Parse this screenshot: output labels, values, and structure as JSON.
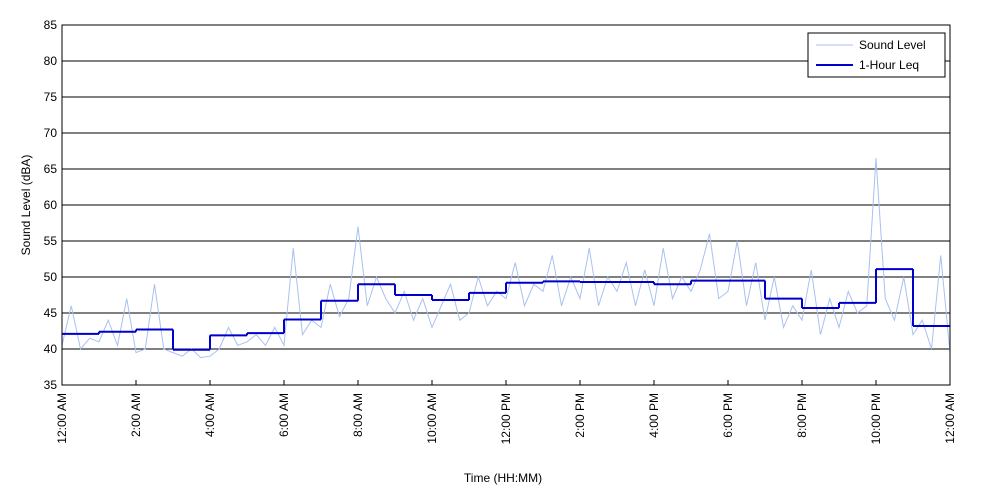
{
  "chart_data": {
    "type": "line",
    "xlabel": "Time (HH:MM)",
    "ylabel": "Sound Level (dBA)",
    "xlim": [
      0,
      24
    ],
    "ylim": [
      35,
      85
    ],
    "yticks": [
      35,
      40,
      45,
      50,
      55,
      60,
      65,
      70,
      75,
      80,
      85
    ],
    "xticks": [
      {
        "value": 0,
        "label": "12:00 AM"
      },
      {
        "value": 2,
        "label": "2:00 AM"
      },
      {
        "value": 4,
        "label": "4:00 AM"
      },
      {
        "value": 6,
        "label": "6:00 AM"
      },
      {
        "value": 8,
        "label": "8:00 AM"
      },
      {
        "value": 10,
        "label": "10:00 AM"
      },
      {
        "value": 12,
        "label": "12:00 PM"
      },
      {
        "value": 14,
        "label": "2:00 PM"
      },
      {
        "value": 16,
        "label": "4:00 PM"
      },
      {
        "value": 18,
        "label": "6:00 PM"
      },
      {
        "value": 20,
        "label": "8:00 PM"
      },
      {
        "value": 22,
        "label": "10:00 PM"
      },
      {
        "value": 24,
        "label": "12:00 AM"
      }
    ],
    "grid": true,
    "legend": "upper right",
    "series": [
      {
        "name": "Sound Level",
        "color": "#a9c1f0",
        "step": false,
        "x": [
          0,
          0.25,
          0.5,
          0.75,
          1,
          1.25,
          1.5,
          1.75,
          2,
          2.25,
          2.5,
          2.75,
          3,
          3.25,
          3.5,
          3.75,
          4,
          4.25,
          4.5,
          4.75,
          5,
          5.25,
          5.5,
          5.75,
          6,
          6.25,
          6.5,
          6.75,
          7,
          7.25,
          7.5,
          7.75,
          8,
          8.25,
          8.5,
          8.75,
          9,
          9.25,
          9.5,
          9.75,
          10,
          10.25,
          10.5,
          10.75,
          11,
          11.25,
          11.5,
          11.75,
          12,
          12.25,
          12.5,
          12.75,
          13,
          13.25,
          13.5,
          13.75,
          14,
          14.25,
          14.5,
          14.75,
          15,
          15.25,
          15.5,
          15.75,
          16,
          16.25,
          16.5,
          16.75,
          17,
          17.25,
          17.5,
          17.75,
          18,
          18.25,
          18.5,
          18.75,
          19,
          19.25,
          19.5,
          19.75,
          20,
          20.25,
          20.5,
          20.75,
          21,
          21.25,
          21.5,
          21.75,
          22,
          22.25,
          22.5,
          22.75,
          23,
          23.25,
          23.5,
          23.75,
          24
        ],
        "values": [
          40.5,
          46,
          40,
          41.5,
          41,
          44,
          40.5,
          47,
          39.5,
          40,
          49,
          40,
          39.5,
          39,
          40,
          38.8,
          39,
          40,
          43,
          40.5,
          41,
          42,
          40.5,
          43,
          40.5,
          54,
          42,
          44,
          43,
          49,
          44.5,
          47,
          57,
          46,
          50,
          47,
          45,
          48,
          44,
          47,
          43,
          46,
          49,
          44,
          45,
          50,
          46,
          48,
          47,
          52,
          46,
          49,
          48,
          53,
          46,
          50,
          47,
          54,
          46,
          50,
          48,
          52,
          46,
          51,
          46,
          54,
          47,
          50,
          48,
          51,
          56,
          47,
          48,
          55,
          46,
          52,
          44,
          50,
          43,
          46,
          44,
          51,
          42,
          47,
          43,
          48,
          45,
          46,
          66.5,
          47,
          44,
          50,
          42,
          44,
          40,
          53,
          39.5
        ]
      },
      {
        "name": "1-Hour Leq",
        "color": "#0000cc",
        "step": true,
        "x": [
          0,
          1,
          2,
          3,
          4,
          5,
          6,
          7,
          8,
          9,
          10,
          11,
          12,
          13,
          14,
          15,
          16,
          17,
          18,
          19,
          20,
          21,
          22,
          23
        ],
        "values": [
          42.1,
          42.4,
          42.7,
          39.9,
          41.9,
          42.2,
          44.1,
          46.7,
          49.0,
          47.5,
          46.8,
          47.8,
          49.2,
          49.4,
          49.3,
          49.3,
          49.0,
          49.5,
          49.5,
          47.0,
          45.7,
          46.4,
          51.1,
          43.2
        ]
      }
    ]
  }
}
